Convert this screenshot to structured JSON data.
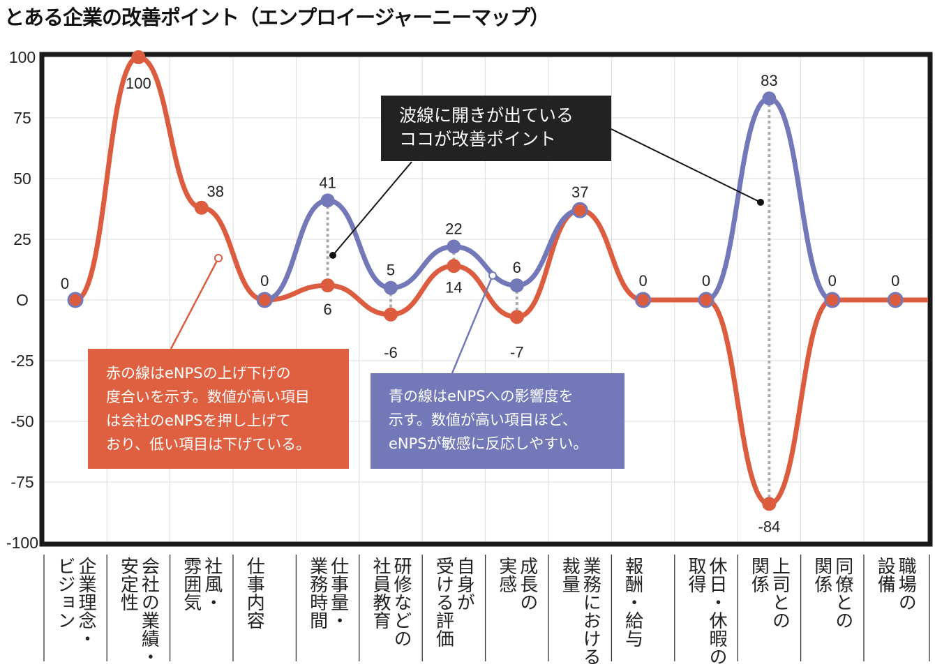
{
  "title": "とある企業の改善ポイント（エンプロイージャーニーマップ）",
  "chart_data": {
    "type": "line",
    "title": "とある企業の改善ポイント（エンプロイージャーニーマップ）",
    "categories": [
      "企業理念・\nビジョン",
      "会社の業績・\n安定性",
      "社風・\n雰囲気",
      "仕事内容",
      "仕事量・\n業務時間",
      "研修などの\n社員教育",
      "自身が\n受ける評価",
      "成長の\n実感",
      "業務における\n裁量",
      "報酬・給与",
      "休日・休暇の\n取得",
      "上司との\n関係",
      "同僚との\n関係",
      "職場の\n設備"
    ],
    "series": [
      {
        "color": "#dc5c3f",
        "values": [
          0,
          100,
          38,
          0,
          6,
          -6,
          14,
          -7,
          37,
          0,
          0,
          -84,
          0,
          0
        ]
      },
      {
        "color": "#7378b8",
        "values": [
          null,
          null,
          null,
          0,
          41,
          5,
          22,
          6,
          37,
          null,
          0,
          83,
          0,
          null
        ]
      }
    ],
    "yticks": [
      "100",
      "75",
      "50",
      "25",
      "O",
      "-25",
      "-50",
      "-75",
      "-100"
    ],
    "ylim": [
      -100,
      100
    ],
    "grid": true,
    "annotations": {
      "black": "波線に開きが出ている\nココが改善ポイント",
      "red": "赤の線はeNPSの上げ下げの\n度合いを示す。数値が高い項目\nは会社のeNPSを押し上げて\nおり、低い項目は下げている。",
      "blue": "青の線はeNPSへの影響度を\n示す。数値が高い項目ほど、\neNPSが敏感に反応しやすい。"
    }
  }
}
